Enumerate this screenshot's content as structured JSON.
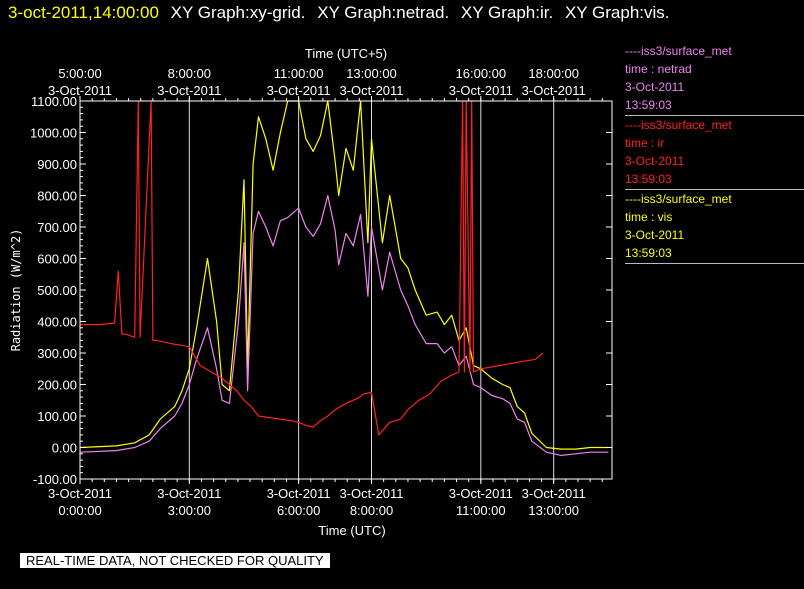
{
  "header": {
    "timestamp": "3-oct-2011,14:00:00",
    "graphs": [
      "XY Graph:xy-grid.",
      "XY Graph:netrad.",
      "XY Graph:ir.",
      "XY Graph:vis."
    ]
  },
  "legend": [
    {
      "name": "----iss3/surface_met",
      "var": "time : netrad",
      "date": "3-Oct-2011",
      "time": "13:59:03",
      "color": "#ee82ee"
    },
    {
      "name": "----iss3/surface_met",
      "var": "time : ir",
      "date": "3-Oct-2011",
      "time": "13:59:03",
      "color": "#ff2020"
    },
    {
      "name": "----iss3/surface_met",
      "var": "time : vis",
      "date": "3-Oct-2011",
      "time": "13:59:03",
      "color": "#ffff00"
    }
  ],
  "notice": "REAL-TIME DATA, NOT CHECKED FOR QUALITY",
  "chart_data": {
    "type": "line",
    "ylabel": "Radiation  (W/m^2)",
    "xlabel": "Time (UTC)",
    "x2label": "Time (UTC+5)",
    "ylim": [
      -100,
      1100
    ],
    "xlim_hours_utc": [
      0,
      14.6
    ],
    "y_ticks": [
      "-100.00",
      "0.00",
      "100.00",
      "200.00",
      "300.00",
      "400.00",
      "500.00",
      "600.00",
      "700.00",
      "800.00",
      "900.00",
      "1000.00",
      "1100.00"
    ],
    "x_ticks": [
      {
        "date": "3-Oct-2011",
        "time": "0:00:00",
        "hour": 0
      },
      {
        "date": "3-Oct-2011",
        "time": "3:00:00",
        "hour": 3
      },
      {
        "date": "3-Oct-2011",
        "time": "6:00:00",
        "hour": 6
      },
      {
        "date": "3-Oct-2011",
        "time": "8:00:00",
        "hour": 8
      },
      {
        "date": "3-Oct-2011",
        "time": "11:00:00",
        "hour": 11
      },
      {
        "date": "3-Oct-2011",
        "time": "13:00:00",
        "hour": 13
      }
    ],
    "x2_ticks": [
      {
        "time": "5:00:00",
        "date": "3-Oct-2011",
        "hour": 0
      },
      {
        "time": "8:00:00",
        "date": "3-Oct-2011",
        "hour": 3
      },
      {
        "time": "11:00:00",
        "date": "3-Oct-2011",
        "hour": 6
      },
      {
        "time": "13:00:00",
        "date": "3-Oct-2011",
        "hour": 8
      },
      {
        "time": "16:00:00",
        "date": "3-Oct-2011",
        "hour": 11
      },
      {
        "time": "18:00:00",
        "date": "3-Oct-2011",
        "hour": 13
      }
    ],
    "grid": true,
    "series": [
      {
        "name": "time : vis",
        "color": "#ffff00",
        "x": [
          0,
          1,
          1.5,
          1.9,
          2.2,
          2.6,
          2.8,
          3.0,
          3.2,
          3.5,
          3.75,
          3.9,
          4.1,
          4.35,
          4.5,
          4.6,
          4.75,
          4.9,
          5.1,
          5.3,
          5.5,
          5.7,
          6.0,
          6.2,
          6.4,
          6.6,
          6.8,
          7.0,
          7.1,
          7.3,
          7.5,
          7.7,
          7.9,
          8.0,
          8.3,
          8.5,
          8.8,
          9.0,
          9.2,
          9.5,
          9.8,
          10.0,
          10.2,
          10.4,
          10.6,
          10.8,
          11.0,
          11.3,
          11.6,
          11.8,
          12.0,
          12.2,
          12.4,
          12.8,
          13.2,
          13.6,
          14.0,
          14.5
        ],
        "y": [
          0,
          5,
          15,
          40,
          90,
          130,
          180,
          250,
          380,
          600,
          400,
          200,
          180,
          500,
          850,
          250,
          900,
          1050,
          980,
          880,
          1000,
          1100,
          1100,
          980,
          940,
          990,
          1100,
          910,
          800,
          950,
          880,
          1100,
          650,
          980,
          650,
          800,
          600,
          570,
          500,
          420,
          430,
          390,
          420,
          340,
          380,
          260,
          250,
          220,
          200,
          190,
          130,
          110,
          45,
          0,
          -5,
          -5,
          0,
          0
        ]
      },
      {
        "name": "time : netrad",
        "color": "#ee82ee",
        "x": [
          0,
          1,
          1.5,
          1.9,
          2.2,
          2.6,
          2.8,
          3.0,
          3.2,
          3.5,
          3.75,
          3.9,
          4.1,
          4.35,
          4.5,
          4.6,
          4.75,
          4.9,
          5.1,
          5.3,
          5.5,
          5.7,
          6.0,
          6.2,
          6.4,
          6.6,
          6.8,
          7.0,
          7.1,
          7.3,
          7.5,
          7.7,
          7.9,
          8.0,
          8.3,
          8.5,
          8.8,
          9.0,
          9.2,
          9.5,
          9.8,
          10.0,
          10.2,
          10.4,
          10.6,
          10.8,
          11.0,
          11.3,
          11.6,
          11.8,
          12.0,
          12.2,
          12.4,
          12.8,
          13.2,
          13.6,
          14.0,
          14.5
        ],
        "y": [
          -15,
          -10,
          0,
          20,
          60,
          100,
          140,
          200,
          280,
          380,
          250,
          150,
          140,
          400,
          650,
          180,
          680,
          750,
          700,
          640,
          720,
          730,
          760,
          700,
          670,
          710,
          800,
          690,
          580,
          680,
          640,
          740,
          480,
          700,
          500,
          620,
          500,
          450,
          390,
          330,
          330,
          300,
          320,
          260,
          290,
          200,
          190,
          165,
          155,
          140,
          90,
          80,
          20,
          -15,
          -25,
          -20,
          -15,
          -15
        ]
      },
      {
        "name": "time : ir",
        "color": "#ff2020",
        "x": [
          0,
          0.5,
          0.95,
          1.05,
          1.15,
          1.25,
          1.5,
          1.6,
          1.65,
          1.95,
          2.0,
          2.1,
          2.5,
          3.0,
          3.3,
          3.6,
          3.9,
          4.1,
          4.3,
          4.5,
          4.7,
          4.9,
          5.2,
          5.5,
          5.8,
          6.0,
          6.2,
          6.4,
          6.6,
          6.8,
          7.0,
          7.3,
          7.6,
          7.8,
          8.0,
          8.2,
          8.5,
          8.8,
          9.0,
          9.3,
          9.6,
          9.9,
          10.2,
          10.4,
          10.5,
          10.55,
          10.6,
          10.7,
          10.75,
          10.8,
          11.0,
          11.5,
          12.0,
          12.5,
          12.7
        ],
        "y": [
          390,
          390,
          395,
          560,
          360,
          360,
          350,
          1100,
          350,
          1100,
          340,
          340,
          330,
          320,
          260,
          240,
          220,
          200,
          180,
          150,
          130,
          100,
          95,
          90,
          85,
          80,
          70,
          65,
          85,
          100,
          120,
          140,
          155,
          170,
          175,
          40,
          80,
          90,
          120,
          150,
          170,
          210,
          230,
          240,
          1100,
          240,
          1100,
          240,
          1100,
          240,
          250,
          260,
          270,
          280,
          300
        ]
      }
    ]
  }
}
